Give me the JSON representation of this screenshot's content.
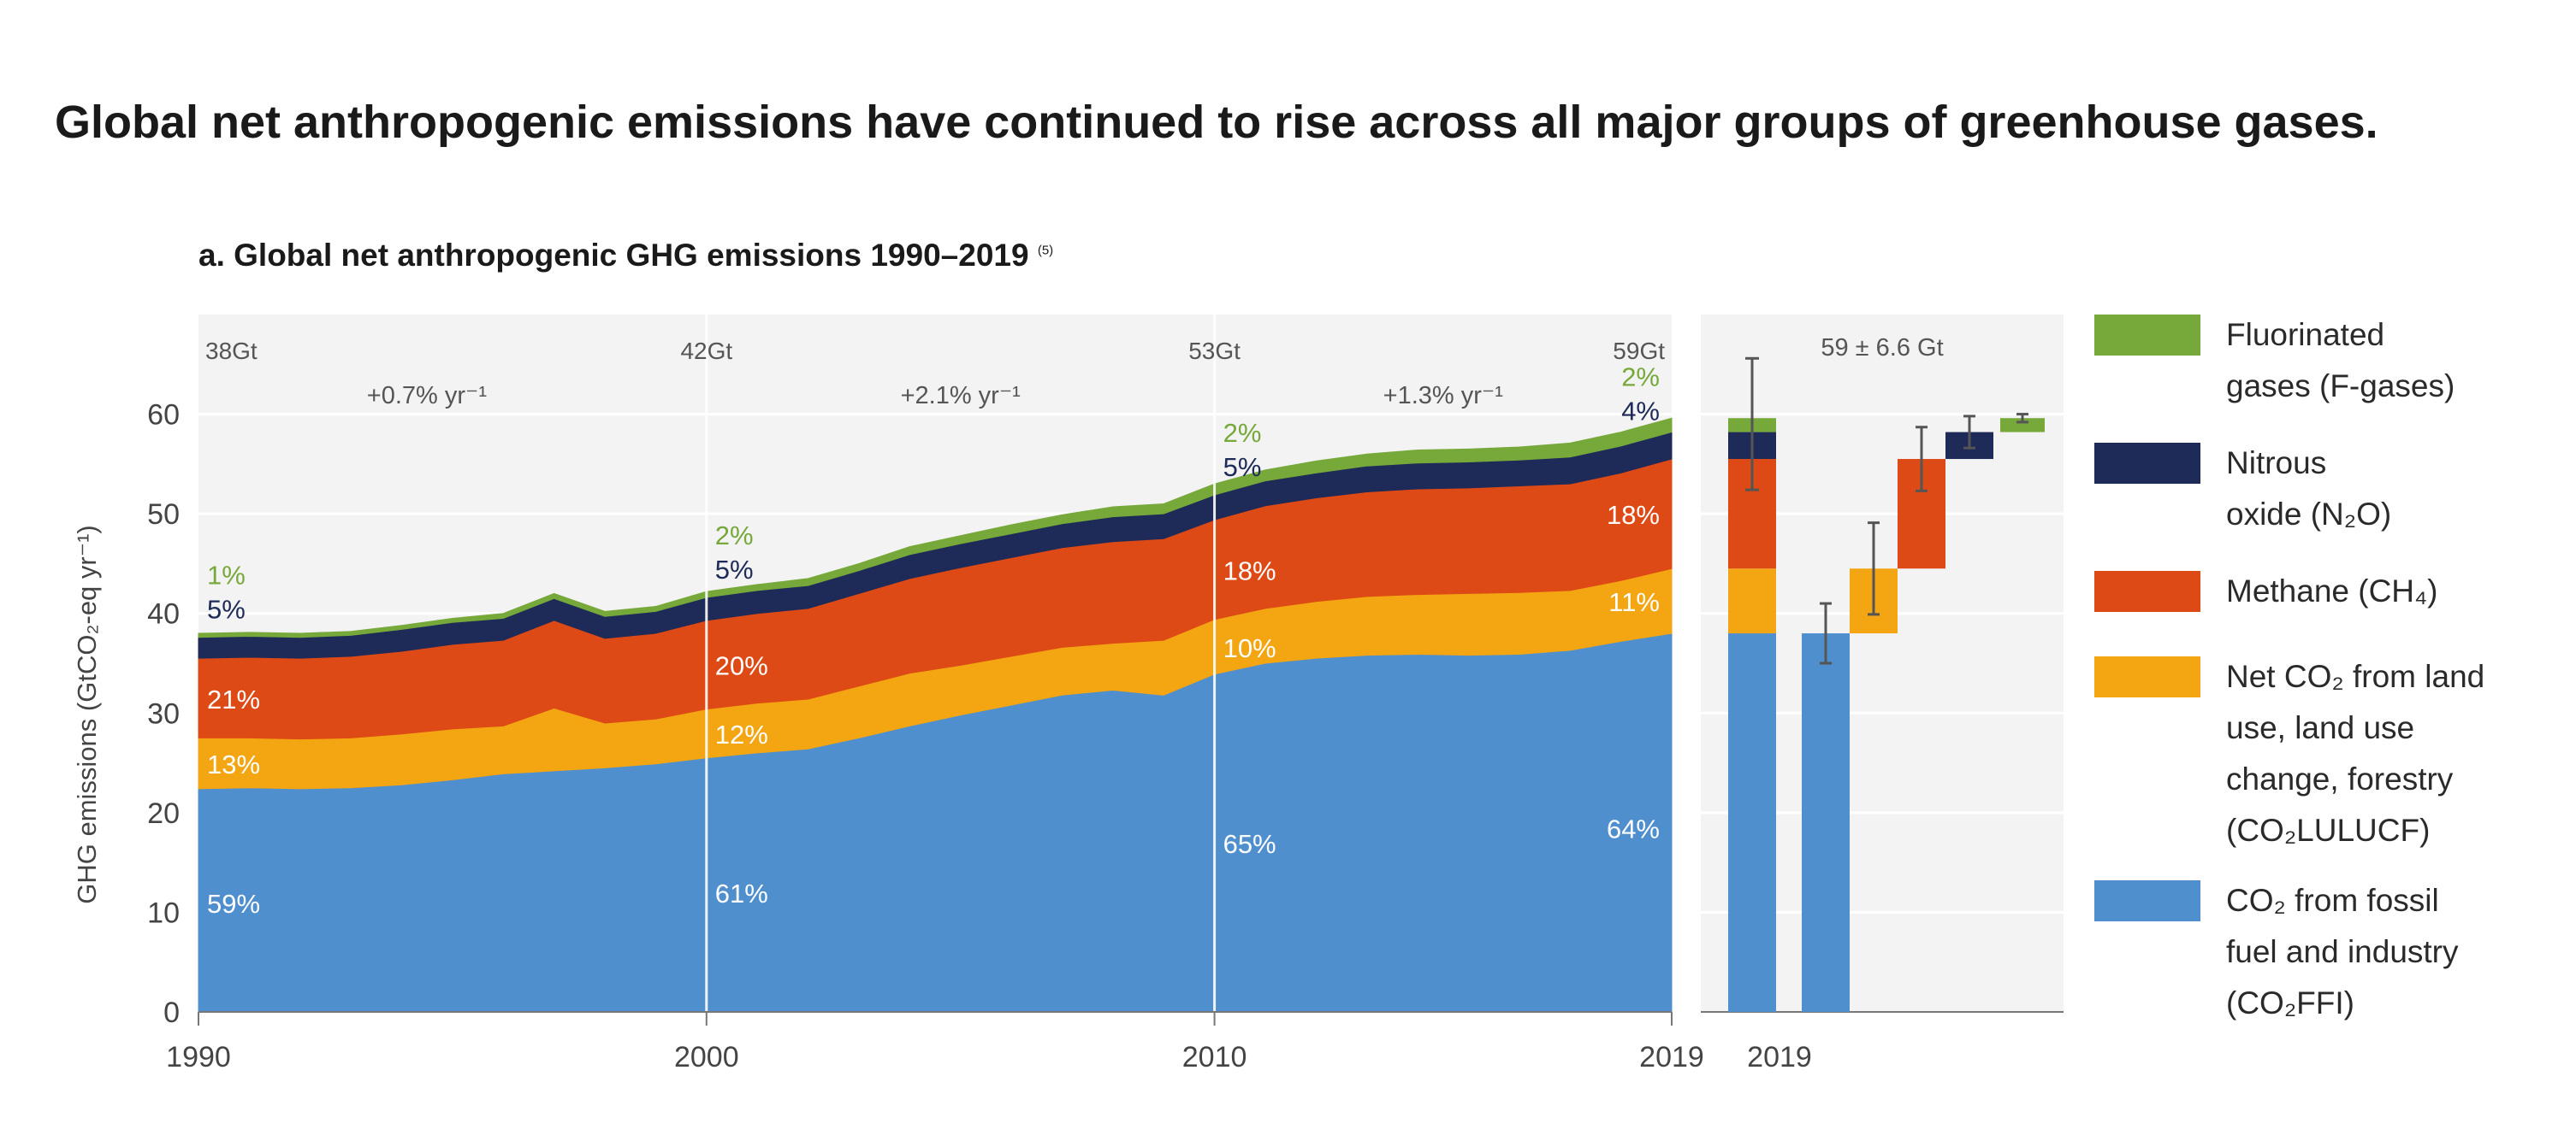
{
  "headline": "Global net anthropogenic emissions have continued to rise across all major groups of greenhouse gases.",
  "panel_title": "a. Global net anthropogenic GHG emissions 1990–2019",
  "panel_title_note": "(5)",
  "chart_data": [
    {
      "type": "area",
      "stacked": true,
      "ylabel": "GHG emissions (GtCO₂-eq yr⁻¹)",
      "ylim": [
        0,
        70
      ],
      "yticks": [
        0,
        10,
        20,
        30,
        40,
        50,
        60
      ],
      "xlim": [
        1990,
        2019
      ],
      "xticks": [
        1990,
        2000,
        2010,
        2019
      ],
      "grid": true,
      "x": [
        1990,
        1991,
        1992,
        1993,
        1994,
        1995,
        1996,
        1997,
        1998,
        1999,
        2000,
        2001,
        2002,
        2003,
        2004,
        2005,
        2006,
        2007,
        2008,
        2009,
        2010,
        2011,
        2012,
        2013,
        2014,
        2015,
        2016,
        2017,
        2018,
        2019
      ],
      "series": [
        {
          "key": "co2ffi",
          "color": "#4f8fce",
          "values": [
            22.4,
            22.5,
            22.4,
            22.5,
            22.8,
            23.3,
            23.9,
            24.2,
            24.5,
            24.9,
            25.5,
            26.0,
            26.4,
            27.5,
            28.7,
            29.8,
            30.8,
            31.8,
            32.3,
            31.8,
            33.9,
            35.0,
            35.5,
            35.8,
            35.9,
            35.8,
            35.9,
            36.3,
            37.2,
            38.0
          ]
        },
        {
          "key": "co2lulucf",
          "color": "#f3a512",
          "values": [
            5.1,
            5.0,
            5.0,
            5.0,
            5.1,
            5.1,
            4.8,
            6.3,
            4.5,
            4.5,
            4.9,
            5.0,
            5.0,
            5.2,
            5.3,
            5.0,
            4.9,
            4.8,
            4.7,
            5.5,
            5.5,
            5.5,
            5.7,
            5.9,
            6.0,
            6.2,
            6.2,
            6.0,
            6.1,
            6.5
          ]
        },
        {
          "key": "ch4",
          "color": "#de4a16",
          "values": [
            8.0,
            8.1,
            8.1,
            8.2,
            8.3,
            8.5,
            8.6,
            8.8,
            8.5,
            8.6,
            8.9,
            9.0,
            9.1,
            9.3,
            9.5,
            9.8,
            9.9,
            10.0,
            10.2,
            10.2,
            10.0,
            10.3,
            10.4,
            10.5,
            10.6,
            10.6,
            10.7,
            10.7,
            10.8,
            11.0
          ]
        },
        {
          "key": "n2o",
          "color": "#1e2a58",
          "values": [
            2.1,
            2.1,
            2.1,
            2.1,
            2.2,
            2.2,
            2.2,
            2.2,
            2.2,
            2.2,
            2.3,
            2.3,
            2.3,
            2.3,
            2.4,
            2.4,
            2.4,
            2.4,
            2.5,
            2.5,
            2.5,
            2.5,
            2.5,
            2.6,
            2.6,
            2.6,
            2.6,
            2.7,
            2.7,
            2.7
          ]
        },
        {
          "key": "fgas",
          "color": "#76a83a",
          "values": [
            0.4,
            0.4,
            0.4,
            0.4,
            0.4,
            0.4,
            0.5,
            0.5,
            0.5,
            0.5,
            0.6,
            0.6,
            0.7,
            0.7,
            0.8,
            0.8,
            0.9,
            0.9,
            1.0,
            1.0,
            1.1,
            1.1,
            1.2,
            1.2,
            1.3,
            1.3,
            1.3,
            1.4,
            1.4,
            1.4
          ]
        }
      ],
      "totals": [
        {
          "year": 1990,
          "label": "38Gt"
        },
        {
          "year": 2000,
          "label": "42Gt"
        },
        {
          "year": 2010,
          "label": "53Gt"
        },
        {
          "year": 2019,
          "label": "59Gt"
        }
      ],
      "growth_rates": [
        {
          "from": 1990,
          "to": 2000,
          "label": "+0.7% yr⁻¹"
        },
        {
          "from": 2000,
          "to": 2010,
          "label": "+2.1% yr⁻¹"
        },
        {
          "from": 2010,
          "to": 2019,
          "label": "+1.3% yr⁻¹"
        }
      ],
      "share_labels": {
        "1990": {
          "co2ffi": "59%",
          "co2lulucf": "13%",
          "ch4": "21%",
          "n2o": "5%",
          "fgas": "1%"
        },
        "2000": {
          "co2ffi": "61%",
          "co2lulucf": "12%",
          "ch4": "20%",
          "n2o": "5%",
          "fgas": "2%"
        },
        "2010": {
          "co2ffi": "65%",
          "co2lulucf": "10%",
          "ch4": "18%",
          "n2o": "5%",
          "fgas": "2%"
        },
        "2019": {
          "co2ffi": "64%",
          "co2lulucf": "11%",
          "ch4": "18%",
          "n2o": "4%",
          "fgas": "2%"
        }
      }
    },
    {
      "type": "bar",
      "title": "59 ± 6.6 Gt",
      "xlabel": "2019",
      "ylim": [
        0,
        70
      ],
      "stacked_bar": {
        "co2ffi": 38.0,
        "co2lulucf": 6.5,
        "ch4": 11.0,
        "n2o": 2.7,
        "fgas": 1.4,
        "total": 59,
        "error": 6.6
      },
      "waterfall": [
        {
          "key": "co2ffi",
          "base": 0,
          "value": 38.0,
          "error": 3.0
        },
        {
          "key": "co2lulucf",
          "base": 38.0,
          "value": 6.5,
          "error": 4.6
        },
        {
          "key": "ch4",
          "base": 44.5,
          "value": 11.0,
          "error": 3.2
        },
        {
          "key": "n2o",
          "base": 55.5,
          "value": 2.7,
          "error": 1.6
        },
        {
          "key": "fgas",
          "base": 58.2,
          "value": 1.4,
          "error": 0.4
        }
      ]
    }
  ],
  "legend": [
    {
      "key": "fgas",
      "color": "#76a83a",
      "lines": [
        "Fluorinated",
        "gases (F-gases)"
      ]
    },
    {
      "key": "n2o",
      "color": "#1e2a58",
      "lines": [
        "Nitrous",
        "oxide (N₂O)"
      ]
    },
    {
      "key": "ch4",
      "color": "#de4a16",
      "lines": [
        "Methane (CH₄)"
      ]
    },
    {
      "key": "co2lulucf",
      "color": "#f3a512",
      "lines": [
        "Net CO₂ from land",
        "use, land use",
        "change, forestry",
        "(CO₂LULUCF)"
      ]
    },
    {
      "key": "co2ffi",
      "color": "#4f8fce",
      "lines": [
        "CO₂ from fossil",
        "fuel and industry",
        "(CO₂FFI)"
      ]
    }
  ]
}
